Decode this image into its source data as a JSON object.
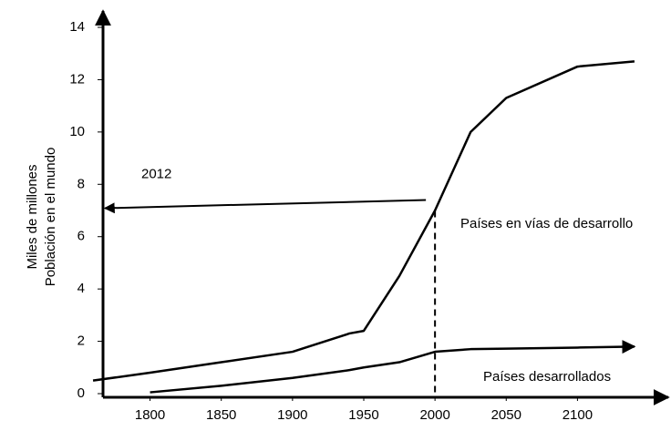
{
  "chart_data": {
    "type": "line",
    "ylabel": [
      "Miles de millones",
      "Población en el mundo"
    ],
    "x": [
      1760,
      1800,
      1850,
      1900,
      1940,
      1950,
      1975,
      2000,
      2025,
      2050,
      2100,
      2140
    ],
    "series": [
      {
        "name": "Países en vías de desarrollo",
        "color": "#000000",
        "values": [
          0.5,
          0.8,
          1.2,
          1.6,
          2.3,
          2.4,
          4.5,
          7.0,
          10.0,
          11.3,
          12.5,
          12.7
        ]
      },
      {
        "name": "Países desarrollados",
        "color": "#000000",
        "values": [
          null,
          0.05,
          0.3,
          0.6,
          0.9,
          1.0,
          1.2,
          1.6,
          1.7,
          1.72,
          1.76,
          1.8
        ]
      }
    ],
    "annotation": {
      "text": "2012",
      "x": 2000,
      "y": 7.4
    },
    "xlim": [
      1767,
      2165
    ],
    "xticks": [
      1800,
      1850,
      1900,
      1950,
      2000,
      2050,
      2100
    ],
    "ylim": [
      0,
      14
    ],
    "yticks": [
      0,
      2,
      4,
      6,
      8,
      10,
      12,
      14
    ],
    "grid": false
  }
}
